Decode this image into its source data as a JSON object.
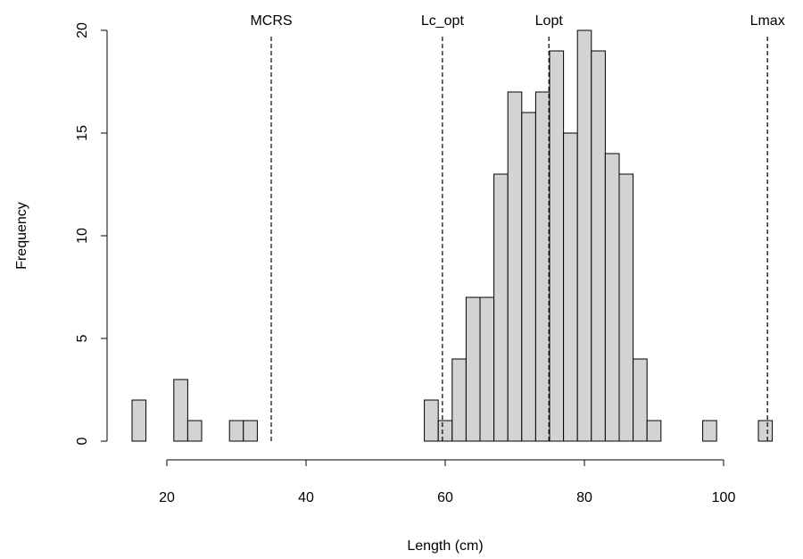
{
  "chart_data": {
    "type": "histogram",
    "x_label": "Length (cm)",
    "y_label": "Frequency",
    "bins": [
      15,
      17,
      19,
      21,
      23,
      25,
      27,
      29,
      31,
      33,
      35,
      37,
      39,
      41,
      43,
      45,
      47,
      49,
      51,
      53,
      55,
      57,
      59,
      61,
      63,
      65,
      67,
      69,
      71,
      73,
      75,
      77,
      79,
      81,
      83,
      85,
      87,
      89,
      91,
      93,
      95,
      97,
      99,
      101,
      103,
      105,
      107
    ],
    "counts": [
      2,
      0,
      0,
      3,
      1,
      0,
      0,
      1,
      1,
      0,
      0,
      0,
      0,
      0,
      0,
      0,
      0,
      0,
      0,
      0,
      0,
      2,
      1,
      4,
      7,
      7,
      13,
      17,
      16,
      17,
      19,
      15,
      20,
      19,
      14,
      13,
      4,
      1,
      0,
      0,
      0,
      1,
      0,
      0,
      0,
      1
    ],
    "color": "#d3d3d3",
    "xlim": [
      13,
      109
    ],
    "xticks": [
      20,
      40,
      60,
      80,
      100
    ],
    "ylim": [
      0,
      20
    ],
    "yticks": [
      0,
      5,
      10,
      15,
      20
    ],
    "reference_lines": [
      {
        "label": "MCRS",
        "value": 35
      },
      {
        "label": "Lc_opt",
        "value": 59.6
      },
      {
        "label": "Lopt",
        "value": 74.9
      },
      {
        "label": "Lmax",
        "value": 106.3
      }
    ]
  }
}
